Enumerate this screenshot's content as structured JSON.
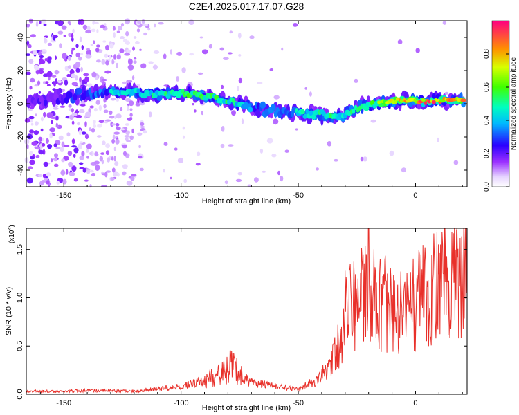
{
  "title": "C2E4.2025.017.17.07.G28",
  "chart_data": [
    {
      "type": "heatmap",
      "xlabel": "Height of straight line (km)",
      "ylabel": "Frequency (Hz)",
      "xlim": [
        -166,
        22
      ],
      "ylim": [
        -50,
        50
      ],
      "xticks": [
        -150,
        -100,
        -50,
        0
      ],
      "yticks": [
        -40,
        -20,
        0,
        20,
        40
      ],
      "colorbar": {
        "label": "Normalized spectral amplitude",
        "range": [
          0,
          1
        ],
        "ticks": [
          "0.0",
          "0.2",
          "0.4",
          "0.6",
          "0.8"
        ],
        "tick_values": [
          0.0,
          0.2,
          0.4,
          0.6,
          0.8
        ]
      },
      "ridge": [
        {
          "x": -163,
          "f": 2,
          "amp": 0.2
        },
        {
          "x": -150,
          "f": 4,
          "amp": 0.2
        },
        {
          "x": -142,
          "f": 6,
          "amp": 0.35
        },
        {
          "x": -130,
          "f": 7,
          "amp": 0.4
        },
        {
          "x": -120,
          "f": 7,
          "amp": 0.45
        },
        {
          "x": -110,
          "f": 6,
          "amp": 0.45
        },
        {
          "x": -100,
          "f": 6,
          "amp": 0.5
        },
        {
          "x": -92,
          "f": 5,
          "amp": 0.6
        },
        {
          "x": -85,
          "f": 3,
          "amp": 0.5
        },
        {
          "x": -78,
          "f": 1,
          "amp": 0.45
        },
        {
          "x": -70,
          "f": -2,
          "amp": 0.4
        },
        {
          "x": -62,
          "f": -4,
          "amp": 0.35
        },
        {
          "x": -55,
          "f": -5,
          "amp": 0.35
        },
        {
          "x": -48,
          "f": -6,
          "amp": 0.45
        },
        {
          "x": -42,
          "f": -6,
          "amp": 0.45
        },
        {
          "x": -36,
          "f": -8,
          "amp": 0.5
        },
        {
          "x": -30,
          "f": -6,
          "amp": 0.45
        },
        {
          "x": -24,
          "f": -2,
          "amp": 0.5
        },
        {
          "x": -18,
          "f": 0,
          "amp": 0.6
        },
        {
          "x": -12,
          "f": 1,
          "amp": 0.7
        },
        {
          "x": -5,
          "f": 2,
          "amp": 0.85
        },
        {
          "x": 0,
          "f": 2,
          "amp": 0.95
        },
        {
          "x": 5,
          "f": 1,
          "amp": 0.9
        },
        {
          "x": 10,
          "f": 2,
          "amp": 0.85
        },
        {
          "x": 15,
          "f": 2,
          "amp": 0.95
        },
        {
          "x": 20,
          "f": 2,
          "amp": 0.8
        }
      ]
    },
    {
      "type": "line",
      "xlabel": "Height of straight line (km)",
      "ylabel": "SNR (10 * v/v)",
      "scale_label": "(x10",
      "scale_exp": "4",
      "scale_close": ")",
      "xlim": [
        -166,
        22
      ],
      "ylim": [
        0,
        1.72
      ],
      "xticks": [
        -150,
        -100,
        -50,
        0
      ],
      "yticks": [
        "0.0",
        "0.5",
        "1.0",
        "1.5"
      ],
      "ytick_values": [
        0.0,
        0.5,
        1.0,
        1.5
      ],
      "color": "#e8302a",
      "envelope_x": [
        -166,
        -150,
        -140,
        -120,
        -100,
        -90,
        -82,
        -78,
        -75,
        -70,
        -60,
        -50,
        -42,
        -36,
        -32,
        -29,
        -26,
        -22,
        -20,
        -17,
        -13,
        -8,
        -4,
        0,
        5,
        10,
        15,
        20,
        22
      ],
      "envelope_y": [
        0.03,
        0.03,
        0.04,
        0.03,
        0.08,
        0.14,
        0.22,
        0.3,
        0.2,
        0.12,
        0.08,
        0.05,
        0.15,
        0.3,
        0.6,
        0.9,
        0.95,
        1.05,
        1.15,
        0.95,
        0.95,
        0.85,
        0.8,
        0.95,
        1.05,
        1.1,
        1.15,
        1.25,
        1.33
      ],
      "peaks": [
        {
          "x": -79,
          "y": 0.45
        },
        {
          "x": -30,
          "y": 1.28
        },
        {
          "x": -20,
          "y": 1.72
        },
        {
          "x": -15,
          "y": 1.4
        },
        {
          "x": 8,
          "y": 1.45
        },
        {
          "x": 21,
          "y": 1.42
        }
      ]
    }
  ]
}
